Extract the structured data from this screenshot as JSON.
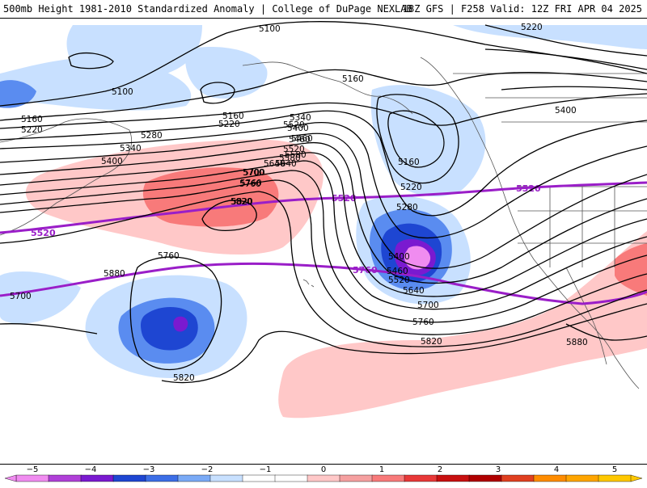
{
  "header": {
    "title": "500mb Height 1981-2010 Standardized Anomaly | College of DuPage NEXLAB",
    "run_info": "18Z GFS | F258 Valid: 12Z FRI APR 04 2025"
  },
  "map": {
    "height_contours": [
      "5100",
      "5100",
      "5160",
      "5220",
      "5280",
      "5340",
      "5400",
      "5460",
      "5520",
      "5580",
      "5640",
      "5700",
      "5760",
      "5820",
      "5880",
      "5160",
      "5220",
      "5280",
      "5400",
      "5220",
      "5160",
      "5400",
      "5460",
      "5520",
      "5640",
      "5700",
      "5760",
      "5820",
      "5760",
      "5820",
      "5700",
      "5880",
      "5340",
      "5400",
      "5460",
      "5520",
      "5580",
      "5640",
      "5700",
      "5760",
      "5820",
      "5160",
      "5220"
    ],
    "climo_lines": [
      "5520",
      "5520",
      "5520",
      "5760",
      "5700"
    ],
    "colors": {
      "pos1": "#ffc8c8",
      "pos2": "#f87a7a",
      "pos3": "#e83838",
      "pos4": "#b00000",
      "pos5": "#ffa500",
      "neg1": "#c8e0ff",
      "neg2": "#5a8cf0",
      "neg3": "#1e46d2",
      "neg4": "#7a1ad0",
      "neg5": "#f08cf0",
      "climo": "#9a1ec8",
      "contour": "#000000",
      "coast": "#555555"
    }
  },
  "colorbar": {
    "ticks": [
      "−5",
      "−4",
      "−3",
      "−2",
      "−1",
      "0",
      "1",
      "2",
      "3",
      "4",
      "5"
    ],
    "colors": [
      "#f08cf0",
      "#b040d8",
      "#7a1ad0",
      "#1e46d2",
      "#3c6ee6",
      "#7aaaf6",
      "#c8e0ff",
      "#ffffff",
      "#ffffff",
      "#ffc8c8",
      "#f5a0a0",
      "#f87a7a",
      "#e83838",
      "#c81010",
      "#b00000",
      "#e04020",
      "#ff8c00",
      "#ffa500",
      "#ffc800"
    ]
  }
}
